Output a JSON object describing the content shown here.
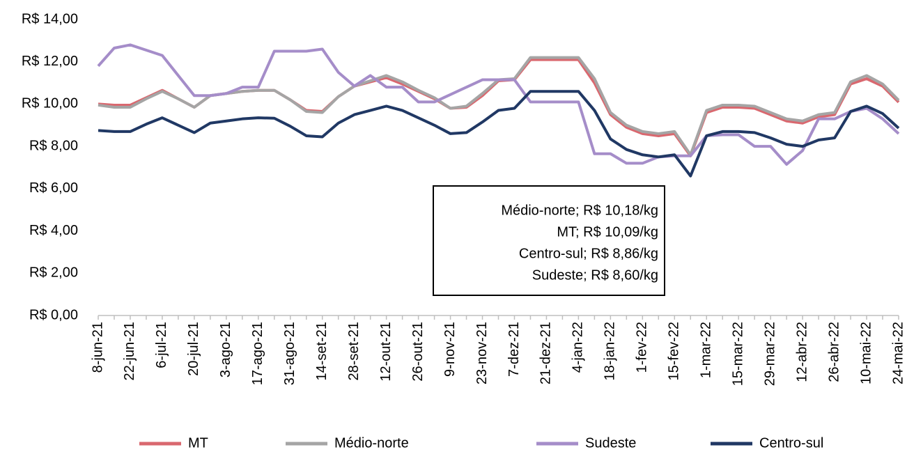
{
  "chart_data": {
    "type": "line",
    "categories": [
      "8-jun-21",
      null,
      "22-jun-21",
      null,
      "6-jul-21",
      null,
      "20-jul-21",
      null,
      "3-ago-21",
      null,
      "17-ago-21",
      null,
      "31-ago-21",
      null,
      "14-set-21",
      null,
      "28-set-21",
      null,
      "12-out-21",
      null,
      "26-out-21",
      null,
      "9-nov-21",
      null,
      "23-nov-21",
      null,
      "7-dez-21",
      null,
      "21-dez-21",
      null,
      "4-jan-22",
      null,
      "18-jan-22",
      null,
      "1-fev-22",
      null,
      "15-fev-22",
      null,
      "1-mar-22",
      null,
      "15-mar-22",
      null,
      "29-mar-22",
      null,
      "12-abr-22",
      null,
      "26-abr-22",
      null,
      "10-mai-22",
      null,
      "24-mai-22"
    ],
    "series": [
      {
        "name": "MT",
        "color": "#d9686f",
        "values": [
          10.0,
          9.95,
          9.95,
          10.3,
          10.65,
          10.25,
          9.85,
          10.4,
          10.5,
          10.6,
          10.65,
          10.65,
          10.2,
          9.7,
          9.65,
          10.35,
          10.85,
          11.05,
          11.25,
          10.95,
          10.6,
          10.25,
          9.8,
          9.85,
          10.4,
          11.1,
          11.15,
          12.1,
          12.1,
          12.1,
          12.1,
          11.0,
          9.5,
          8.9,
          8.6,
          8.5,
          8.6,
          7.55,
          9.6,
          9.85,
          9.85,
          9.8,
          9.5,
          9.2,
          9.1,
          9.4,
          9.5,
          10.95,
          11.2,
          10.85,
          10.09
        ]
      },
      {
        "name": "Médio-norte",
        "color": "#a5a5a5",
        "values": [
          9.95,
          9.85,
          9.85,
          10.25,
          10.6,
          10.25,
          9.85,
          10.4,
          10.5,
          10.6,
          10.65,
          10.65,
          10.2,
          9.65,
          9.6,
          10.35,
          10.85,
          11.1,
          11.35,
          11.05,
          10.65,
          10.3,
          9.8,
          9.9,
          10.5,
          11.15,
          11.2,
          12.2,
          12.2,
          12.2,
          12.2,
          11.2,
          9.6,
          9.0,
          8.7,
          8.6,
          8.7,
          7.6,
          9.7,
          9.95,
          9.95,
          9.9,
          9.6,
          9.3,
          9.2,
          9.5,
          9.6,
          11.05,
          11.35,
          10.95,
          10.18
        ]
      },
      {
        "name": "Sudeste",
        "color": "#a58dc9",
        "values": [
          11.8,
          12.65,
          12.8,
          12.55,
          12.3,
          11.35,
          10.4,
          10.4,
          10.5,
          10.8,
          10.8,
          12.5,
          12.5,
          12.5,
          12.6,
          11.5,
          10.85,
          11.35,
          10.8,
          10.8,
          10.1,
          10.1,
          10.45,
          10.8,
          11.15,
          11.15,
          11.15,
          10.1,
          10.1,
          10.1,
          10.1,
          7.65,
          7.65,
          7.2,
          7.2,
          7.5,
          7.55,
          7.55,
          8.5,
          8.55,
          8.55,
          8.0,
          8.0,
          7.15,
          7.8,
          9.3,
          9.3,
          9.65,
          9.8,
          9.3,
          8.6
        ]
      },
      {
        "name": "Centro-sul",
        "color": "#203864",
        "values": [
          8.75,
          8.7,
          8.7,
          9.05,
          9.35,
          9.0,
          8.65,
          9.1,
          9.2,
          9.3,
          9.35,
          9.33,
          8.95,
          8.5,
          8.45,
          9.1,
          9.5,
          9.7,
          9.9,
          9.7,
          9.35,
          9.0,
          8.6,
          8.65,
          9.15,
          9.7,
          9.8,
          10.6,
          10.6,
          10.6,
          10.6,
          9.7,
          8.35,
          7.85,
          7.6,
          7.5,
          7.6,
          6.6,
          8.5,
          8.7,
          8.7,
          8.65,
          8.4,
          8.1,
          8.0,
          8.3,
          8.4,
          9.65,
          9.9,
          9.55,
          8.86
        ]
      }
    ],
    "ylim": [
      0,
      14
    ],
    "yticks": [
      {
        "value": 0,
        "label": "R$ 0,00"
      },
      {
        "value": 2,
        "label": "R$ 2,00"
      },
      {
        "value": 4,
        "label": "R$ 4,00"
      },
      {
        "value": 6,
        "label": "R$ 6,00"
      },
      {
        "value": 8,
        "label": "R$ 8,00"
      },
      {
        "value": 10,
        "label": "R$ 10,00"
      },
      {
        "value": 12,
        "label": "R$ 12,00"
      },
      {
        "value": 14,
        "label": "R$ 14,00"
      }
    ],
    "grid": false,
    "legend": "bottom",
    "annotations": [
      "Médio-norte; R$ 10,18/kg",
      "MT; R$ 10,09/kg",
      "Centro-sul; R$ 8,86/kg",
      "Sudeste; R$ 8,60/kg"
    ]
  }
}
